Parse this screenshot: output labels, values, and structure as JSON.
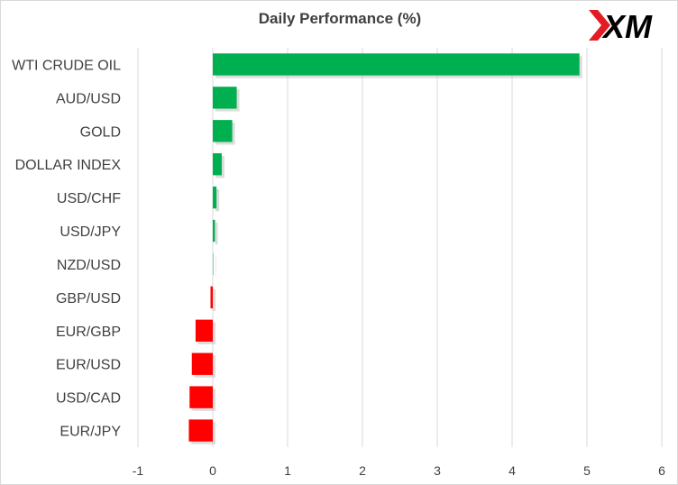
{
  "chart_data": {
    "type": "bar",
    "orientation": "horizontal",
    "title": "Daily Performance (%)",
    "categories": [
      "WTI CRUDE OIL",
      "AUD/USD",
      "GOLD",
      "DOLLAR INDEX",
      "USD/CHF",
      "USD/JPY",
      "NZD/USD",
      "GBP/USD",
      "EUR/GBP",
      "EUR/USD",
      "USD/CAD",
      "EUR/JPY"
    ],
    "values": [
      4.9,
      0.32,
      0.26,
      0.12,
      0.05,
      0.03,
      0.0,
      -0.03,
      -0.23,
      -0.28,
      -0.31,
      -0.32
    ],
    "xlim": [
      -1,
      6
    ],
    "xticks": [
      "-1",
      "0",
      "1",
      "2",
      "3",
      "4",
      "5",
      "6"
    ],
    "grid": true,
    "colors": {
      "positive": "#00b050",
      "negative": "#ff0000",
      "grid": "#d9d9d9",
      "text": "#404040"
    }
  },
  "logo": {
    "text": "XM",
    "colors": {
      "mark": "#e31b23",
      "text": "#000000"
    }
  }
}
